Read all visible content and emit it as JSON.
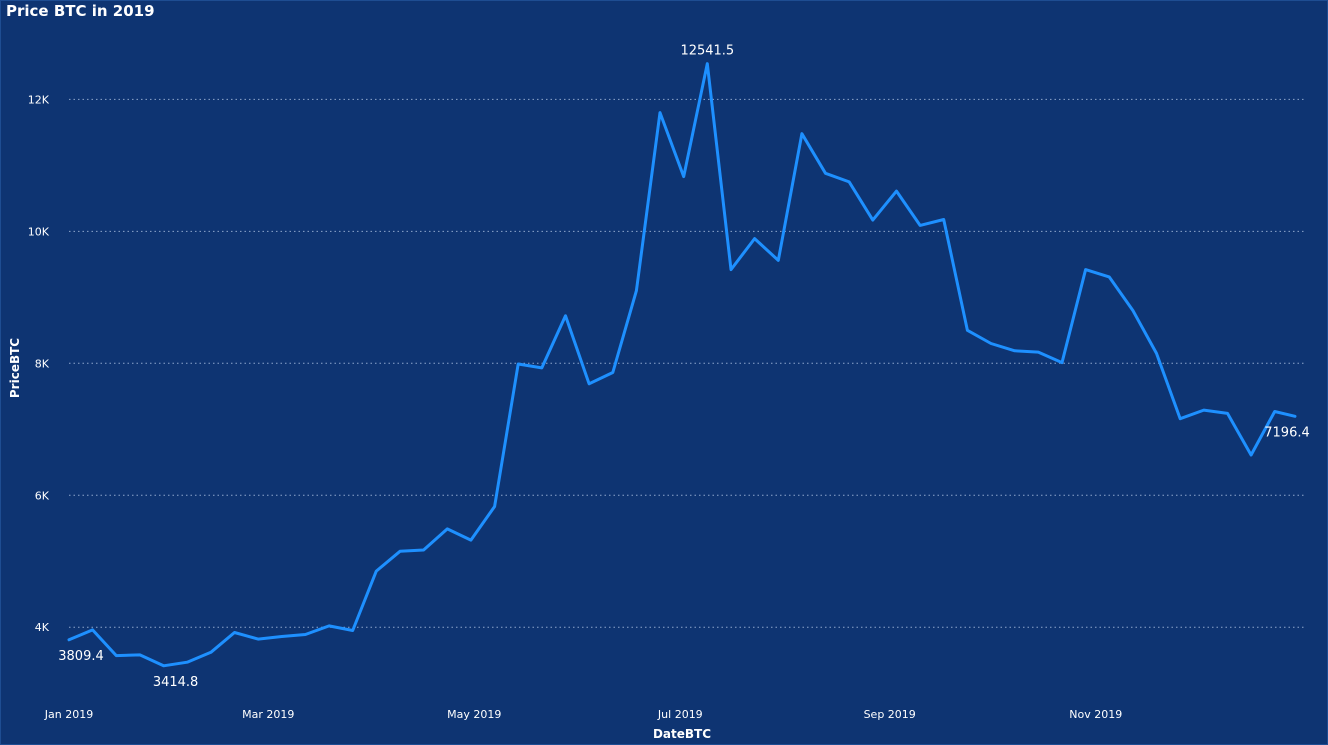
{
  "colors": {
    "background": "#0e3472",
    "line": "#1e90ff",
    "text": "#ffffff",
    "grid": "#8ea6cc"
  },
  "chart_data": {
    "type": "line",
    "title": "Price BTC in 2019",
    "xlabel": "DateBTC",
    "ylabel": "PriceBTC",
    "ylim": [
      3200,
      12900
    ],
    "xlim": [
      "2019-01-01",
      "2019-12-30"
    ],
    "grid": true,
    "y_ticks": [
      {
        "value": 4000,
        "label": "4K"
      },
      {
        "value": 6000,
        "label": "6K"
      },
      {
        "value": 8000,
        "label": "8K"
      },
      {
        "value": 10000,
        "label": "10K"
      },
      {
        "value": 12000,
        "label": "12K"
      }
    ],
    "x_ticks": [
      {
        "value": "2019-01-01",
        "label": "Jan 2019"
      },
      {
        "value": "2019-03-01",
        "label": "Mar 2019"
      },
      {
        "value": "2019-05-01",
        "label": "May 2019"
      },
      {
        "value": "2019-07-01",
        "label": "Jul 2019"
      },
      {
        "value": "2019-09-01",
        "label": "Sep 2019"
      },
      {
        "value": "2019-11-01",
        "label": "Nov 2019"
      }
    ],
    "series": [
      {
        "x": [
          "2019-01-01",
          "2019-01-08",
          "2019-01-15",
          "2019-01-22",
          "2019-01-29",
          "2019-02-05",
          "2019-02-12",
          "2019-02-19",
          "2019-02-26",
          "2019-03-05",
          "2019-03-12",
          "2019-03-19",
          "2019-03-26",
          "2019-04-02",
          "2019-04-09",
          "2019-04-16",
          "2019-04-23",
          "2019-04-30",
          "2019-05-07",
          "2019-05-14",
          "2019-05-21",
          "2019-05-28",
          "2019-06-04",
          "2019-06-11",
          "2019-06-18",
          "2019-06-25",
          "2019-07-02",
          "2019-07-09",
          "2019-07-16",
          "2019-07-23",
          "2019-07-30",
          "2019-08-06",
          "2019-08-13",
          "2019-08-20",
          "2019-08-27",
          "2019-09-03",
          "2019-09-10",
          "2019-09-17",
          "2019-09-24",
          "2019-10-01",
          "2019-10-08",
          "2019-10-15",
          "2019-10-22",
          "2019-10-29",
          "2019-11-05",
          "2019-11-12",
          "2019-11-19",
          "2019-11-26",
          "2019-12-03",
          "2019-12-10",
          "2019-12-17",
          "2019-12-24",
          "2019-12-30"
        ],
        "values": [
          3809.4,
          3960,
          3570,
          3580,
          3414.8,
          3470,
          3620,
          3920,
          3820,
          3860,
          3890,
          4020,
          3950,
          4850,
          5150,
          5170,
          5490,
          5320,
          5830,
          7990,
          7930,
          8720,
          7690,
          7860,
          9100,
          11800,
          10830,
          12541.5,
          9420,
          9890,
          9560,
          11480,
          10880,
          10750,
          10170,
          10610,
          10090,
          10180,
          8500,
          8300,
          8190,
          8170,
          8010,
          9420,
          9310,
          8800,
          8150,
          7160,
          7290,
          7240,
          6610,
          7270,
          7196.4
        ]
      }
    ],
    "annotations": [
      {
        "index": 0,
        "label": "3809.4",
        "position": "below"
      },
      {
        "index": 4,
        "label": "3414.8",
        "position": "below"
      },
      {
        "index": 27,
        "label": "12541.5",
        "position": "above"
      },
      {
        "index": 52,
        "label": "7196.4",
        "position": "below-left"
      }
    ]
  }
}
